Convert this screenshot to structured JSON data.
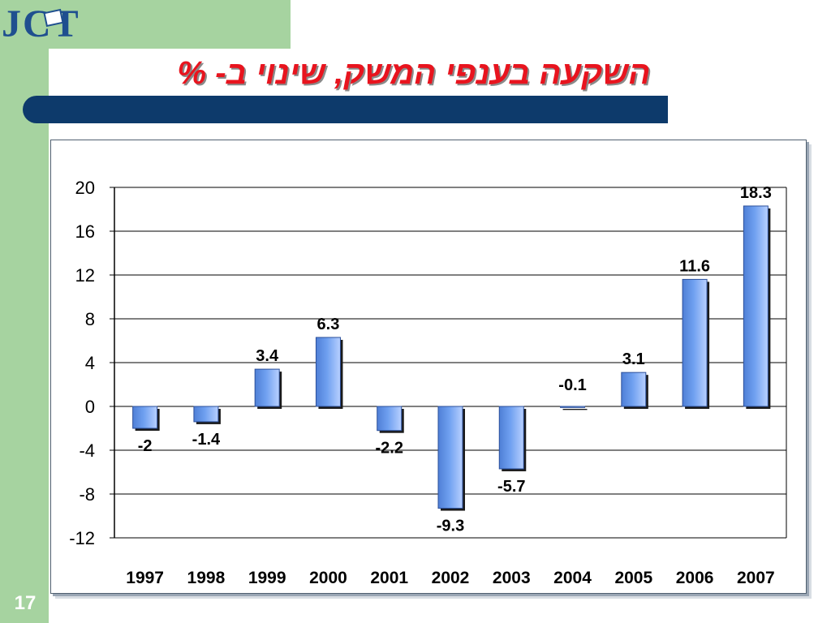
{
  "slide": {
    "title": "השקעה בענפי המשק, שינוי ב- %",
    "logo_text": "JCT",
    "page_number": "17"
  },
  "colors": {
    "side_band": "#a6d3a0",
    "title_text": "#e8141e",
    "title_bar": "#0d3a6b",
    "bar_fill": "#6fa0f0"
  },
  "chart_data": {
    "type": "bar",
    "categories": [
      "1997",
      "1998",
      "1999",
      "2000",
      "2001",
      "2002",
      "2003",
      "2004",
      "2005",
      "2006",
      "2007"
    ],
    "values": [
      -2,
      -1.4,
      3.4,
      6.3,
      -2.2,
      -9.3,
      -5.7,
      -0.1,
      3.1,
      11.6,
      18.3
    ],
    "data_labels": [
      "-2",
      "-1.4",
      "3.4",
      "6.3",
      "-2.2",
      "-9.3",
      "-5.7",
      "-0.1",
      "3.1",
      "11.6",
      "18.3"
    ],
    "ylim": [
      -12,
      20
    ],
    "yticks": [
      20,
      16,
      12,
      8,
      4,
      0,
      -4,
      -8,
      -12
    ],
    "ytick_labels": [
      "20",
      "16",
      "12",
      "8",
      "4",
      "0",
      "-4",
      "-8",
      "-12"
    ],
    "title": "",
    "xlabel": "",
    "ylabel": "",
    "grid": true,
    "legend": "none"
  }
}
